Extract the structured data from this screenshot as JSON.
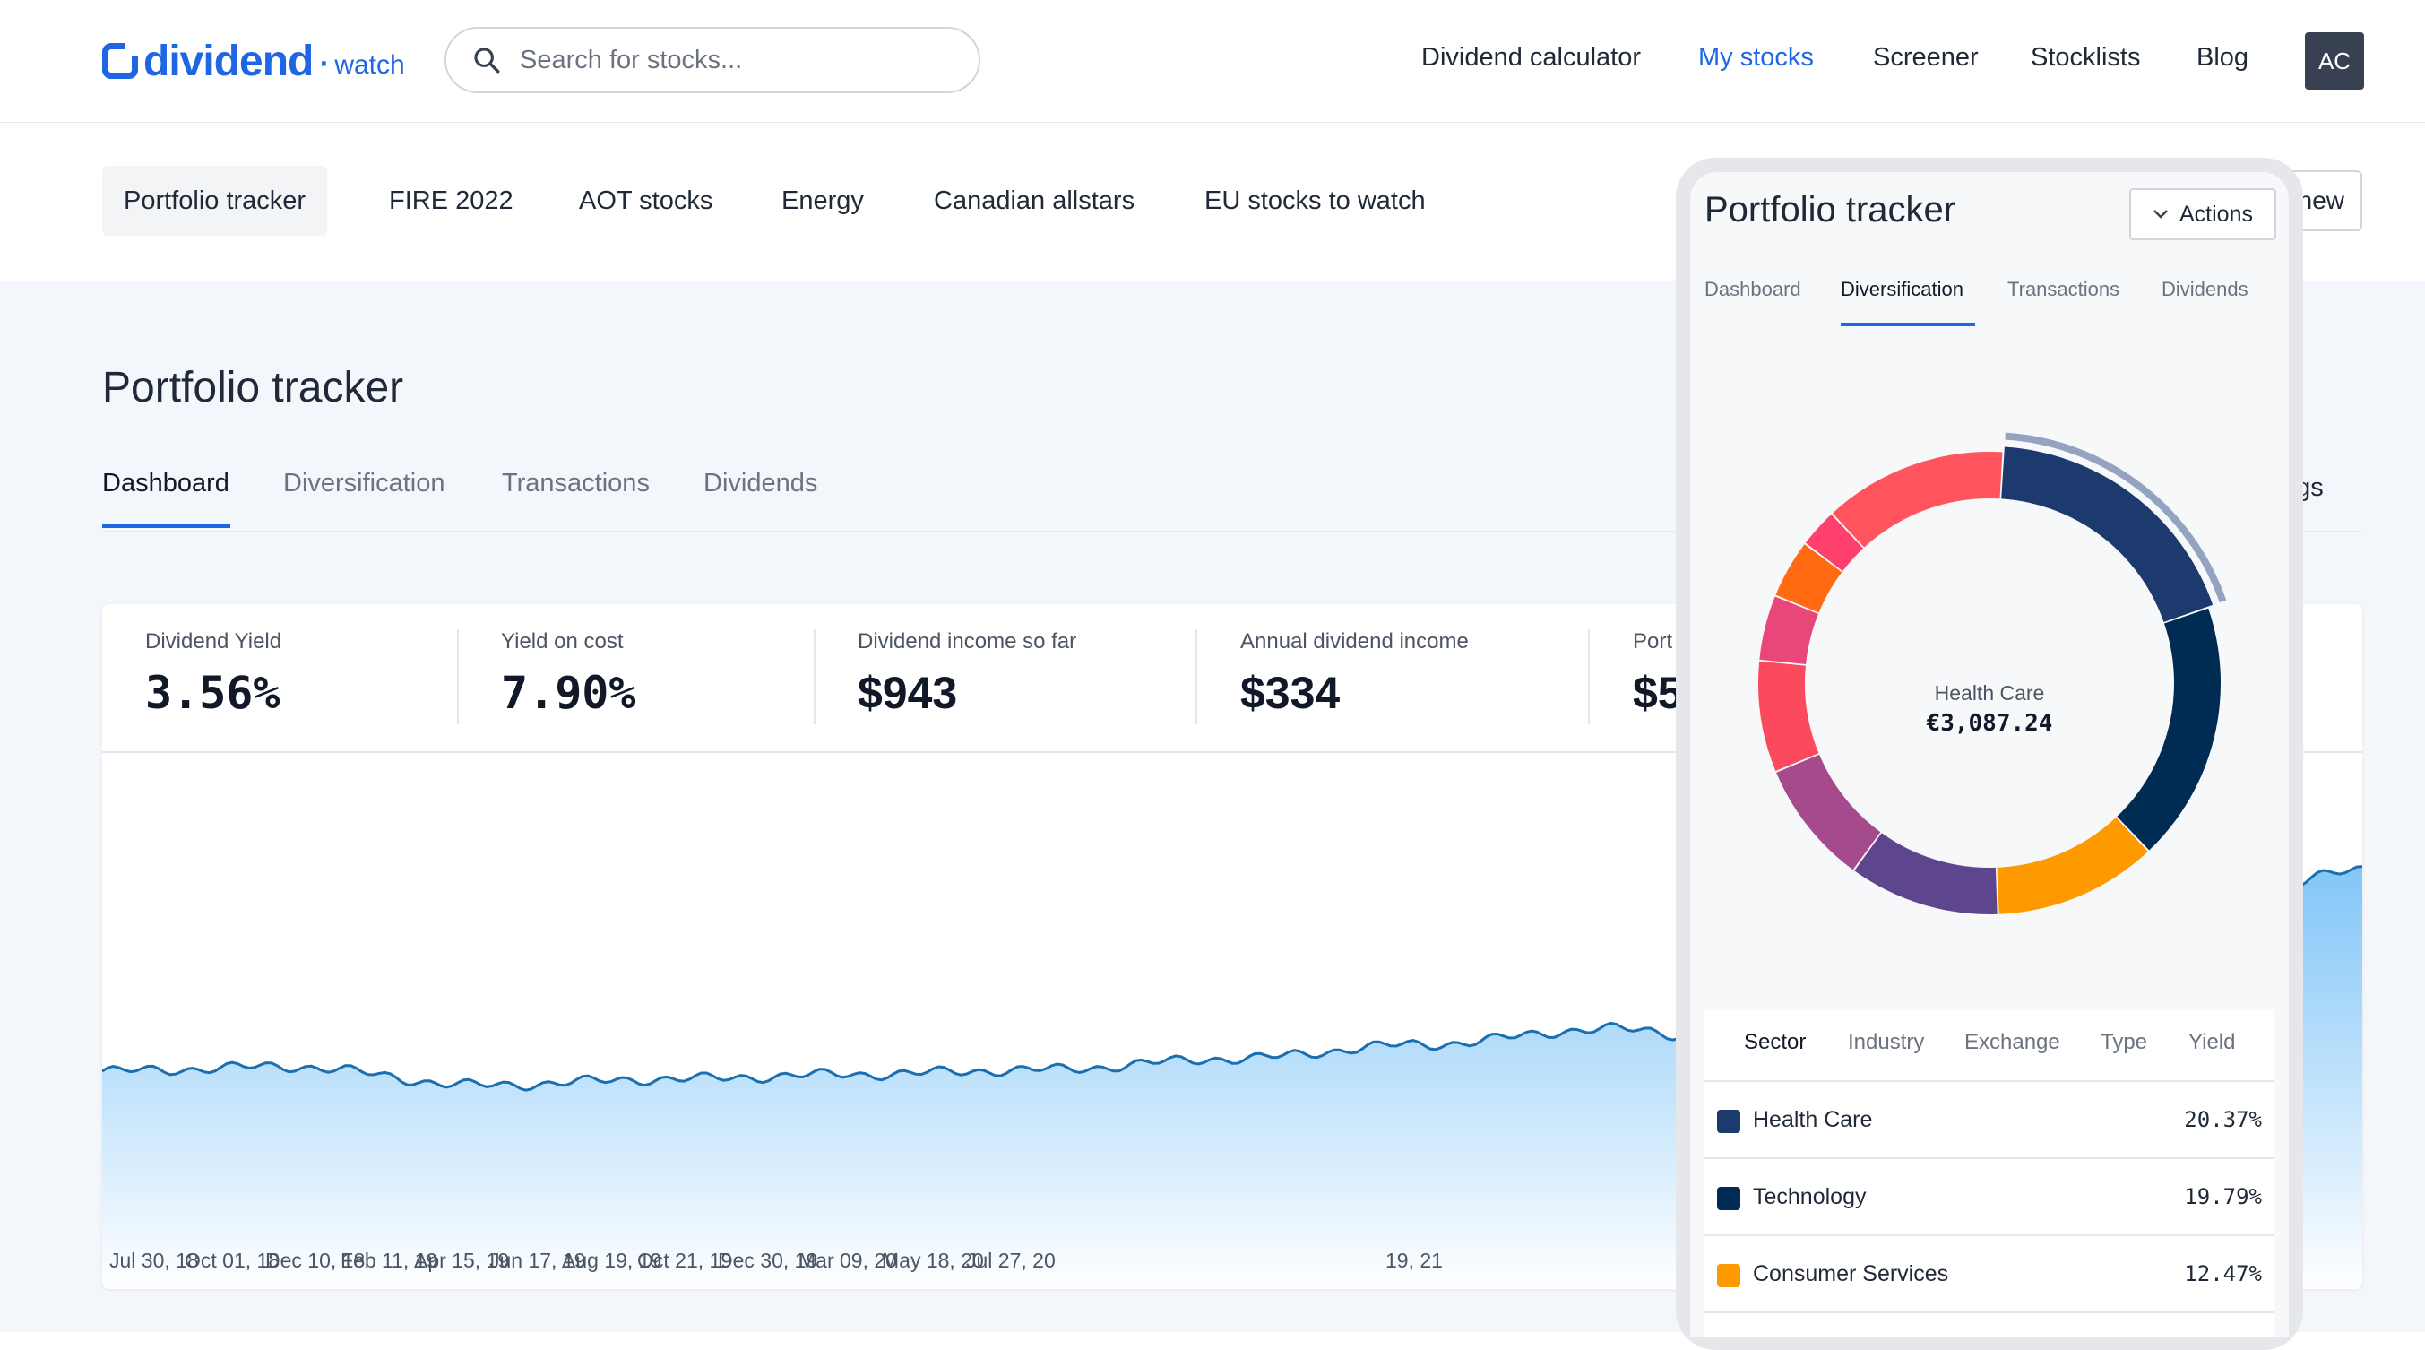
{
  "colors": {
    "brand": "#1f66e5",
    "chart_line": "#1a6fb0",
    "chart_fill": "#a9d7fb"
  },
  "nav": {
    "logo_main": "dividend",
    "logo_tld": "watch",
    "search_placeholder": "Search for stocks...",
    "links": [
      "Dividend calculator",
      "My stocks",
      "Screener",
      "Stocklists",
      "Blog"
    ],
    "active_link": "My stocks",
    "avatar": "AC"
  },
  "portfolios": {
    "tabs": [
      "Portfolio tracker",
      "FIRE 2022",
      "AOT stocks",
      "Energy",
      "Canadian allstars",
      "EU stocks to watch"
    ],
    "active": "Portfolio tracker",
    "new_button_fragment": "new"
  },
  "main": {
    "title": "Portfolio tracker",
    "tabs": [
      "Dashboard",
      "Diversification",
      "Transactions",
      "Dividends"
    ],
    "active_tab": "Dashboard",
    "settings_fragment": "ngs"
  },
  "stats": [
    {
      "label": "Dividend Yield",
      "value": "3.56%"
    },
    {
      "label": "Yield on cost",
      "value": "7.90%"
    },
    {
      "label": "Dividend income so far",
      "value": "$943"
    },
    {
      "label": "Annual dividend income",
      "value": "$334"
    },
    {
      "label": "Port",
      "value": "$5"
    }
  ],
  "chart_data": {
    "type": "area",
    "x": [
      "Jul 30, 18",
      "Oct 01, 18",
      "Dec 10, 18",
      "Feb 11, 19",
      "Apr 15, 19",
      "Jun 17, 19",
      "Aug 19, 19",
      "Oct 21, 19",
      "Dec 30, 19",
      "Mar 09, 20",
      "May 18, 20",
      "Jul 27, 20",
      "19, 21"
    ],
    "values": [
      100,
      103,
      91,
      95,
      98,
      101,
      108,
      117,
      127,
      114,
      135,
      185,
      230
    ],
    "xlabel": "",
    "ylabel": "",
    "grid": false
  },
  "phone": {
    "title": "Portfolio tracker",
    "actions_label": "Actions",
    "tabs": [
      "Dashboard",
      "Diversification",
      "Transactions",
      "Dividends"
    ],
    "active_tab": "Diversification",
    "donut_center_label": "Health Care",
    "donut_center_value": "€3,087.24",
    "donut": {
      "type": "pie",
      "slices": [
        {
          "label": "Health Care",
          "value": 20.37,
          "color": "#1d3a6e"
        },
        {
          "label": "Technology",
          "value": 19.79,
          "color": "#002b52"
        },
        {
          "label": "Consumer Services",
          "value": 12.47,
          "color": "#ff9900"
        },
        {
          "label": "",
          "value": 11.5,
          "color": "#5e468f"
        },
        {
          "label": "",
          "value": 9.5,
          "color": "#a64a8e"
        },
        {
          "label": "",
          "value": 8.5,
          "color": "#fb4a5d"
        },
        {
          "label": "",
          "value": 5.0,
          "color": "#e9467a"
        },
        {
          "label": "",
          "value": 4.5,
          "color": "#ff6a13"
        },
        {
          "label": "",
          "value": 3.0,
          "color": "#ff3f6c"
        },
        {
          "label": "",
          "value": 14.0,
          "color": "#ff545e"
        }
      ]
    },
    "sub_tabs": [
      "Sector",
      "Industry",
      "Exchange",
      "Type",
      "Yield"
    ],
    "active_sub_tab": "Sector",
    "rows": [
      {
        "name": "Health Care",
        "pct": "20.37%",
        "color": "#1d3a6e"
      },
      {
        "name": "Technology",
        "pct": "19.79%",
        "color": "#002b52"
      },
      {
        "name": "Consumer Services",
        "pct": "12.47%",
        "color": "#ff9900"
      }
    ]
  }
}
